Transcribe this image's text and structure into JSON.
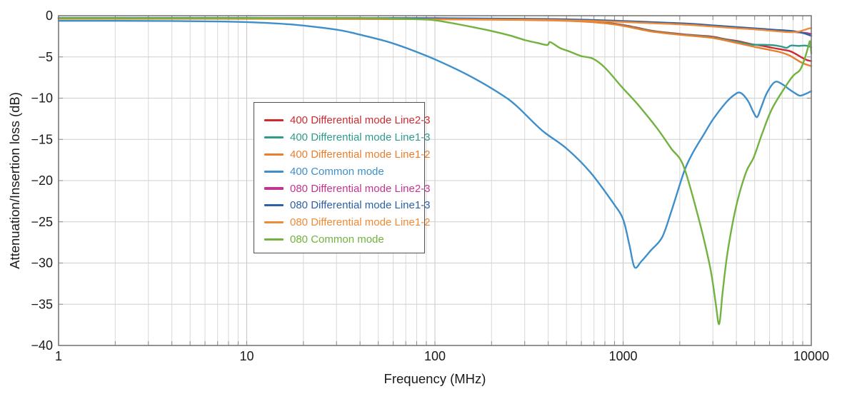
{
  "chart_data": {
    "type": "line",
    "title": "",
    "xlabel": "Frequency (MHz)",
    "ylabel": "Attenuation/Insertion loss (dB)",
    "x_scale": "log",
    "xlim_mhz": [
      1,
      10000
    ],
    "ylim_db": [
      -40,
      0
    ],
    "grid": "minor-vertical-log + major-horizontal-5dB",
    "legend_position": "upper-center-left, boxed",
    "x_tick_values": [
      1,
      10,
      100,
      1000,
      10000
    ],
    "x_tick_labels": [
      "1",
      "10",
      "100",
      "1000",
      "10000"
    ],
    "y_tick_values": [
      0,
      -5,
      -10,
      -15,
      -20,
      -25,
      -30,
      -35,
      -40
    ],
    "y_tick_labels": [
      "0",
      "−5",
      "−10",
      "−15",
      "−20",
      "−25",
      "−30",
      "−35",
      "−40"
    ],
    "axis_color": "#787878",
    "grid_color": "#d8d8d8",
    "series": [
      {
        "name": "400 Differential mode Line2-3",
        "color": "#cf2a2f",
        "points": [
          [
            1,
            -0.3
          ],
          [
            3,
            -0.3
          ],
          [
            10,
            -0.3
          ],
          [
            30,
            -0.32
          ],
          [
            100,
            -0.35
          ],
          [
            200,
            -0.4
          ],
          [
            300,
            -0.46
          ],
          [
            500,
            -0.56
          ],
          [
            700,
            -0.72
          ],
          [
            900,
            -0.97
          ],
          [
            1100,
            -1.3
          ],
          [
            1300,
            -1.65
          ],
          [
            1500,
            -1.9
          ],
          [
            1800,
            -2.1
          ],
          [
            2200,
            -2.3
          ],
          [
            2700,
            -2.45
          ],
          [
            3000,
            -2.55
          ],
          [
            3500,
            -2.85
          ],
          [
            4000,
            -3.05
          ],
          [
            4400,
            -3.25
          ],
          [
            4800,
            -3.45
          ],
          [
            5500,
            -3.65
          ],
          [
            6200,
            -3.9
          ],
          [
            7000,
            -4.1
          ],
          [
            7700,
            -4.3
          ],
          [
            8200,
            -4.6
          ],
          [
            8800,
            -5.0
          ],
          [
            9300,
            -5.3
          ],
          [
            9700,
            -5.45
          ],
          [
            10000,
            -5.5
          ]
        ]
      },
      {
        "name": "400 Differential mode Line1-3",
        "color": "#2d9c8d",
        "points": [
          [
            1,
            -0.33
          ],
          [
            10,
            -0.33
          ],
          [
            100,
            -0.38
          ],
          [
            300,
            -0.5
          ],
          [
            500,
            -0.6
          ],
          [
            700,
            -0.76
          ],
          [
            900,
            -1.02
          ],
          [
            1100,
            -1.36
          ],
          [
            1300,
            -1.7
          ],
          [
            1500,
            -1.95
          ],
          [
            1800,
            -2.15
          ],
          [
            2200,
            -2.35
          ],
          [
            2700,
            -2.5
          ],
          [
            3000,
            -2.62
          ],
          [
            3500,
            -2.92
          ],
          [
            4000,
            -3.15
          ],
          [
            4400,
            -3.35
          ],
          [
            4800,
            -3.5
          ],
          [
            5500,
            -3.52
          ],
          [
            6000,
            -3.55
          ],
          [
            6500,
            -3.62
          ],
          [
            7000,
            -3.76
          ],
          [
            7400,
            -3.9
          ],
          [
            7800,
            -3.62
          ],
          [
            8500,
            -3.66
          ],
          [
            9200,
            -3.62
          ],
          [
            9700,
            -3.7
          ],
          [
            10000,
            -3.85
          ]
        ]
      },
      {
        "name": "400 Differential mode Line1-2",
        "color": "#e87f2f",
        "points": [
          [
            1,
            -0.36
          ],
          [
            10,
            -0.36
          ],
          [
            100,
            -0.42
          ],
          [
            300,
            -0.52
          ],
          [
            500,
            -0.62
          ],
          [
            700,
            -0.8
          ],
          [
            900,
            -1.06
          ],
          [
            1100,
            -1.42
          ],
          [
            1300,
            -1.76
          ],
          [
            1500,
            -2.0
          ],
          [
            1800,
            -2.2
          ],
          [
            2200,
            -2.4
          ],
          [
            2700,
            -2.58
          ],
          [
            3000,
            -2.7
          ],
          [
            3500,
            -3.0
          ],
          [
            4000,
            -3.3
          ],
          [
            4400,
            -3.5
          ],
          [
            5000,
            -3.78
          ],
          [
            6000,
            -4.15
          ],
          [
            6900,
            -4.45
          ],
          [
            7700,
            -4.85
          ],
          [
            8300,
            -5.3
          ],
          [
            8900,
            -5.7
          ],
          [
            9500,
            -5.95
          ],
          [
            10000,
            -6.1
          ]
        ]
      },
      {
        "name": "400 Common mode",
        "color": "#3d8fcc",
        "points": [
          [
            1,
            -0.62
          ],
          [
            4,
            -0.64
          ],
          [
            8,
            -0.72
          ],
          [
            12,
            -0.85
          ],
          [
            17,
            -1.05
          ],
          [
            24,
            -1.4
          ],
          [
            32,
            -1.8
          ],
          [
            40,
            -2.3
          ],
          [
            55,
            -3.1
          ],
          [
            70,
            -3.9
          ],
          [
            100,
            -5.3
          ],
          [
            150,
            -7.2
          ],
          [
            220,
            -9.4
          ],
          [
            270,
            -10.9
          ],
          [
            370,
            -13.9
          ],
          [
            500,
            -16.1
          ],
          [
            670,
            -19.0
          ],
          [
            890,
            -22.8
          ],
          [
            1000,
            -24.7
          ],
          [
            1080,
            -27.8
          ],
          [
            1150,
            -30.5
          ],
          [
            1250,
            -29.8
          ],
          [
            1400,
            -28.5
          ],
          [
            1610,
            -26.9
          ],
          [
            1800,
            -23.8
          ],
          [
            2110,
            -18.9
          ],
          [
            2350,
            -16.6
          ],
          [
            2700,
            -14.3
          ],
          [
            3000,
            -12.6
          ],
          [
            3500,
            -10.6
          ],
          [
            3900,
            -9.6
          ],
          [
            4200,
            -9.35
          ],
          [
            4600,
            -10.3
          ],
          [
            4900,
            -11.6
          ],
          [
            5150,
            -12.3
          ],
          [
            5400,
            -11.2
          ],
          [
            5800,
            -9.4
          ],
          [
            6400,
            -8.05
          ],
          [
            7000,
            -8.3
          ],
          [
            7600,
            -8.9
          ],
          [
            8200,
            -9.4
          ],
          [
            8700,
            -9.7
          ],
          [
            9300,
            -9.5
          ],
          [
            10000,
            -9.15
          ]
        ]
      },
      {
        "name": "080 Differential mode Line2-3",
        "color": "#c43590",
        "points": [
          [
            1,
            -0.3
          ],
          [
            10,
            -0.3
          ],
          [
            100,
            -0.33
          ],
          [
            300,
            -0.4
          ],
          [
            500,
            -0.48
          ],
          [
            900,
            -0.66
          ],
          [
            1400,
            -0.84
          ],
          [
            2150,
            -1.02
          ],
          [
            3000,
            -1.25
          ],
          [
            4000,
            -1.45
          ],
          [
            5150,
            -1.62
          ],
          [
            6500,
            -1.8
          ],
          [
            7400,
            -1.88
          ],
          [
            8200,
            -1.98
          ],
          [
            9200,
            -2.08
          ],
          [
            10000,
            -2.2
          ]
        ]
      },
      {
        "name": "080 Differential mode Line1-3",
        "color": "#2e61a4",
        "points": [
          [
            1,
            -0.27
          ],
          [
            10,
            -0.27
          ],
          [
            100,
            -0.3
          ],
          [
            300,
            -0.37
          ],
          [
            500,
            -0.44
          ],
          [
            900,
            -0.6
          ],
          [
            1400,
            -0.78
          ],
          [
            2150,
            -0.95
          ],
          [
            3000,
            -1.18
          ],
          [
            4000,
            -1.38
          ],
          [
            5150,
            -1.55
          ],
          [
            6500,
            -1.72
          ],
          [
            7400,
            -1.8
          ],
          [
            8200,
            -1.9
          ],
          [
            9200,
            -2.15
          ],
          [
            10000,
            -2.45
          ]
        ]
      },
      {
        "name": "080 Differential mode Line1-2",
        "color": "#ee8b38",
        "points": [
          [
            1,
            -0.38
          ],
          [
            10,
            -0.38
          ],
          [
            100,
            -0.42
          ],
          [
            300,
            -0.48
          ],
          [
            500,
            -0.55
          ],
          [
            900,
            -0.72
          ],
          [
            1400,
            -0.9
          ],
          [
            2150,
            -1.08
          ],
          [
            3000,
            -1.32
          ],
          [
            4000,
            -1.52
          ],
          [
            5150,
            -1.68
          ],
          [
            6500,
            -1.88
          ],
          [
            7400,
            -1.98
          ],
          [
            8000,
            -2.0
          ],
          [
            8600,
            -1.92
          ],
          [
            9200,
            -1.72
          ],
          [
            9700,
            -1.55
          ],
          [
            10000,
            -1.5
          ]
        ]
      },
      {
        "name": "080 Common mode",
        "color": "#72b23e",
        "points": [
          [
            1,
            -0.3
          ],
          [
            30,
            -0.3
          ],
          [
            60,
            -0.36
          ],
          [
            80,
            -0.42
          ],
          [
            100,
            -0.55
          ],
          [
            130,
            -1.0
          ],
          [
            160,
            -1.4
          ],
          [
            200,
            -1.85
          ],
          [
            250,
            -2.4
          ],
          [
            300,
            -2.95
          ],
          [
            350,
            -3.3
          ],
          [
            395,
            -3.55
          ],
          [
            410,
            -3.2
          ],
          [
            460,
            -3.9
          ],
          [
            520,
            -4.35
          ],
          [
            600,
            -4.9
          ],
          [
            690,
            -5.2
          ],
          [
            800,
            -6.3
          ],
          [
            980,
            -8.6
          ],
          [
            1200,
            -10.8
          ],
          [
            1520,
            -13.7
          ],
          [
            1800,
            -16.1
          ],
          [
            2090,
            -18.2
          ],
          [
            2500,
            -24.3
          ],
          [
            2900,
            -30.5
          ],
          [
            3100,
            -34.8
          ],
          [
            3240,
            -37.4
          ],
          [
            3380,
            -33.5
          ],
          [
            3600,
            -28.5
          ],
          [
            4000,
            -23.0
          ],
          [
            4500,
            -19.0
          ],
          [
            4940,
            -17.2
          ],
          [
            5500,
            -14.2
          ],
          [
            6150,
            -11.4
          ],
          [
            7100,
            -9.0
          ],
          [
            8000,
            -7.3
          ],
          [
            8700,
            -6.6
          ],
          [
            9200,
            -5.3
          ],
          [
            9600,
            -3.9
          ],
          [
            9850,
            -3.1
          ],
          [
            10000,
            -4.6
          ]
        ]
      }
    ]
  }
}
